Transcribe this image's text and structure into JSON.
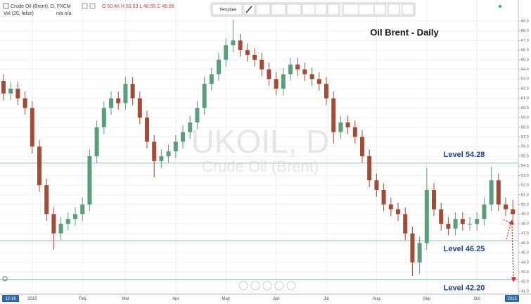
{
  "chart_data": {
    "type": "candlestick",
    "title": "Oil Brent - Daily",
    "symbol": "Crude Oil (Brent), D, FXCM",
    "ohlc_header": "O 50.46 H 50.53 L 48.55 C 48.66",
    "volume_label": "Vol (20, false)",
    "volume_values": "n/a n/a",
    "toolbar_template": "Template",
    "watermark": "UKOIL, D",
    "watermark_subtitle": "Crude Oil (Brent)",
    "cursor_labels": [
      "12-16",
      "2015"
    ],
    "up_color": "#5a9e7c",
    "down_color": "#a24b37",
    "level_color": "#8cc1b8",
    "grid": true,
    "categories": [
      null,
      null,
      null,
      null,
      "2015",
      null,
      null,
      null,
      null,
      null,
      null,
      "Feb",
      null,
      null,
      null,
      null,
      null,
      "Mar",
      null,
      null,
      null,
      null,
      null,
      null,
      "Apr",
      null,
      null,
      null,
      null,
      null,
      null,
      "May",
      null,
      null,
      null,
      null,
      null,
      null,
      "Jun",
      null,
      null,
      null,
      null,
      null,
      null,
      "Jul",
      null,
      null,
      null,
      null,
      null,
      null,
      "Aug",
      null,
      null,
      null,
      null,
      null,
      null,
      "Sep",
      null,
      null,
      null,
      null,
      null,
      null,
      "Oct",
      null,
      null,
      null,
      null,
      null
    ],
    "open": [
      62.8,
      61.5,
      62,
      61,
      60,
      56,
      52,
      49,
      47,
      48,
      48.5,
      49,
      50,
      55,
      58,
      60,
      61,
      60.5,
      62.5,
      61,
      59,
      56.5,
      54.5,
      55,
      55.5,
      56.5,
      57.5,
      58.5,
      60,
      62.5,
      63.5,
      65,
      66.5,
      67,
      66,
      65.5,
      65,
      64,
      63,
      62,
      63.5,
      64.5,
      64,
      63.5,
      63,
      62.5,
      61,
      57.5,
      58.5,
      58,
      57,
      55,
      52.5,
      51.5,
      50,
      49.5,
      49,
      47,
      44,
      46,
      51.5,
      49.5,
      48,
      47.5,
      48.5,
      48,
      48,
      48.5,
      50,
      52.5,
      50,
      49.5
    ],
    "high": [
      63.5,
      62.7,
      62.7,
      61.7,
      60.7,
      56.7,
      52.7,
      49.7,
      48.7,
      49.2,
      49.7,
      50.7,
      55.7,
      58.7,
      60.7,
      61.7,
      61.7,
      63.2,
      63.2,
      61.7,
      59.7,
      57.2,
      55.7,
      56.2,
      57.2,
      58.2,
      59.2,
      60.7,
      63.2,
      64.2,
      65.7,
      67.2,
      69.1,
      67.7,
      66.7,
      66.2,
      65.7,
      64.7,
      63.7,
      64.2,
      65.2,
      65.2,
      64.7,
      64.2,
      63.7,
      63.2,
      61.7,
      59.2,
      59.2,
      58.7,
      57.7,
      55.7,
      53.2,
      52.2,
      50.7,
      50.2,
      49.7,
      47.7,
      46.7,
      53.8,
      52.2,
      50.2,
      48.7,
      49.2,
      49.2,
      48.7,
      49.2,
      50.7,
      53.9,
      53.2,
      50.7,
      50.5
    ],
    "low": [
      60.8,
      60.8,
      60.3,
      59.3,
      55.3,
      51.3,
      48.3,
      45.3,
      46.3,
      47.3,
      47.8,
      48.3,
      49.3,
      54.3,
      57.3,
      59.3,
      59.8,
      59.8,
      60.3,
      58.3,
      55.8,
      52.8,
      53.8,
      54.3,
      54.8,
      55.8,
      56.8,
      57.8,
      59.3,
      61.8,
      62.8,
      64.3,
      65.8,
      65.3,
      64.8,
      64.3,
      63.3,
      62.3,
      61.3,
      61.3,
      62.8,
      63.3,
      62.8,
      62.3,
      61.8,
      60.3,
      56.3,
      56.8,
      57.3,
      56.3,
      54.3,
      51.8,
      50.8,
      49.3,
      48.8,
      48.3,
      46.3,
      42.6,
      42.8,
      45.3,
      48.8,
      47.3,
      46.8,
      46.8,
      47.3,
      47.3,
      47.3,
      47.8,
      49.3,
      49.3,
      48.8,
      48.3
    ],
    "close": [
      61.5,
      62,
      61,
      60,
      56,
      52,
      49,
      47,
      48,
      48.5,
      49,
      50,
      55,
      58,
      60,
      61,
      60.5,
      62.5,
      61,
      59,
      56.5,
      54.5,
      55,
      55.5,
      56.5,
      57.5,
      58.5,
      60,
      62.5,
      63.5,
      65,
      66.5,
      67,
      66,
      65.5,
      65,
      64,
      63,
      62,
      63.5,
      64.5,
      64,
      63.5,
      63,
      62.5,
      61,
      57.5,
      58.5,
      58,
      57,
      55,
      52.5,
      51.5,
      50,
      49.5,
      49,
      47,
      44,
      46,
      51.5,
      49.5,
      48,
      47.5,
      48.5,
      48,
      48,
      48.5,
      50,
      52.5,
      50,
      49.5,
      49
    ],
    "levels": [
      {
        "value": 54.28,
        "label": "Level 54.28"
      },
      {
        "value": 46.25,
        "label": "Level 46.25"
      },
      {
        "value": 42.2,
        "label": "Level 42.20"
      }
    ],
    "ylim": [
      41,
      69
    ],
    "yticks": [
      {
        "value": 41,
        "label": "41.0"
      },
      {
        "value": 42,
        "label": "42.0"
      },
      {
        "value": 43,
        "label": "43.0"
      },
      {
        "value": 44,
        "label": "44.0"
      },
      {
        "value": 45,
        "label": "45.0"
      },
      {
        "value": 46,
        "label": "46.0"
      },
      {
        "value": 47,
        "label": "47.0"
      },
      {
        "value": 48,
        "label": "48.0"
      },
      {
        "value": 49,
        "label": "49.0"
      },
      {
        "value": 50,
        "label": "50.0"
      },
      {
        "value": 51,
        "label": "51.0"
      },
      {
        "value": 52,
        "label": "52.0"
      },
      {
        "value": 53,
        "label": "53.0"
      },
      {
        "value": 54,
        "label": "54.0"
      },
      {
        "value": 55,
        "label": "55.0"
      },
      {
        "value": 56,
        "label": "56.0"
      },
      {
        "value": 57,
        "label": "57.0"
      },
      {
        "value": 58,
        "label": "58.0"
      },
      {
        "value": 59,
        "label": "59.0"
      },
      {
        "value": 60,
        "label": "60.0"
      },
      {
        "value": 61,
        "label": "61.0"
      },
      {
        "value": 62,
        "label": "62.0"
      },
      {
        "value": 63,
        "label": "63.0"
      },
      {
        "value": 64,
        "label": "64.0"
      },
      {
        "value": 65,
        "label": "65.0"
      },
      {
        "value": 66,
        "label": "66.0"
      },
      {
        "value": 67,
        "label": "67.0"
      },
      {
        "value": 68,
        "label": "68.0"
      },
      {
        "value": 69,
        "label": "69.0"
      }
    ]
  }
}
